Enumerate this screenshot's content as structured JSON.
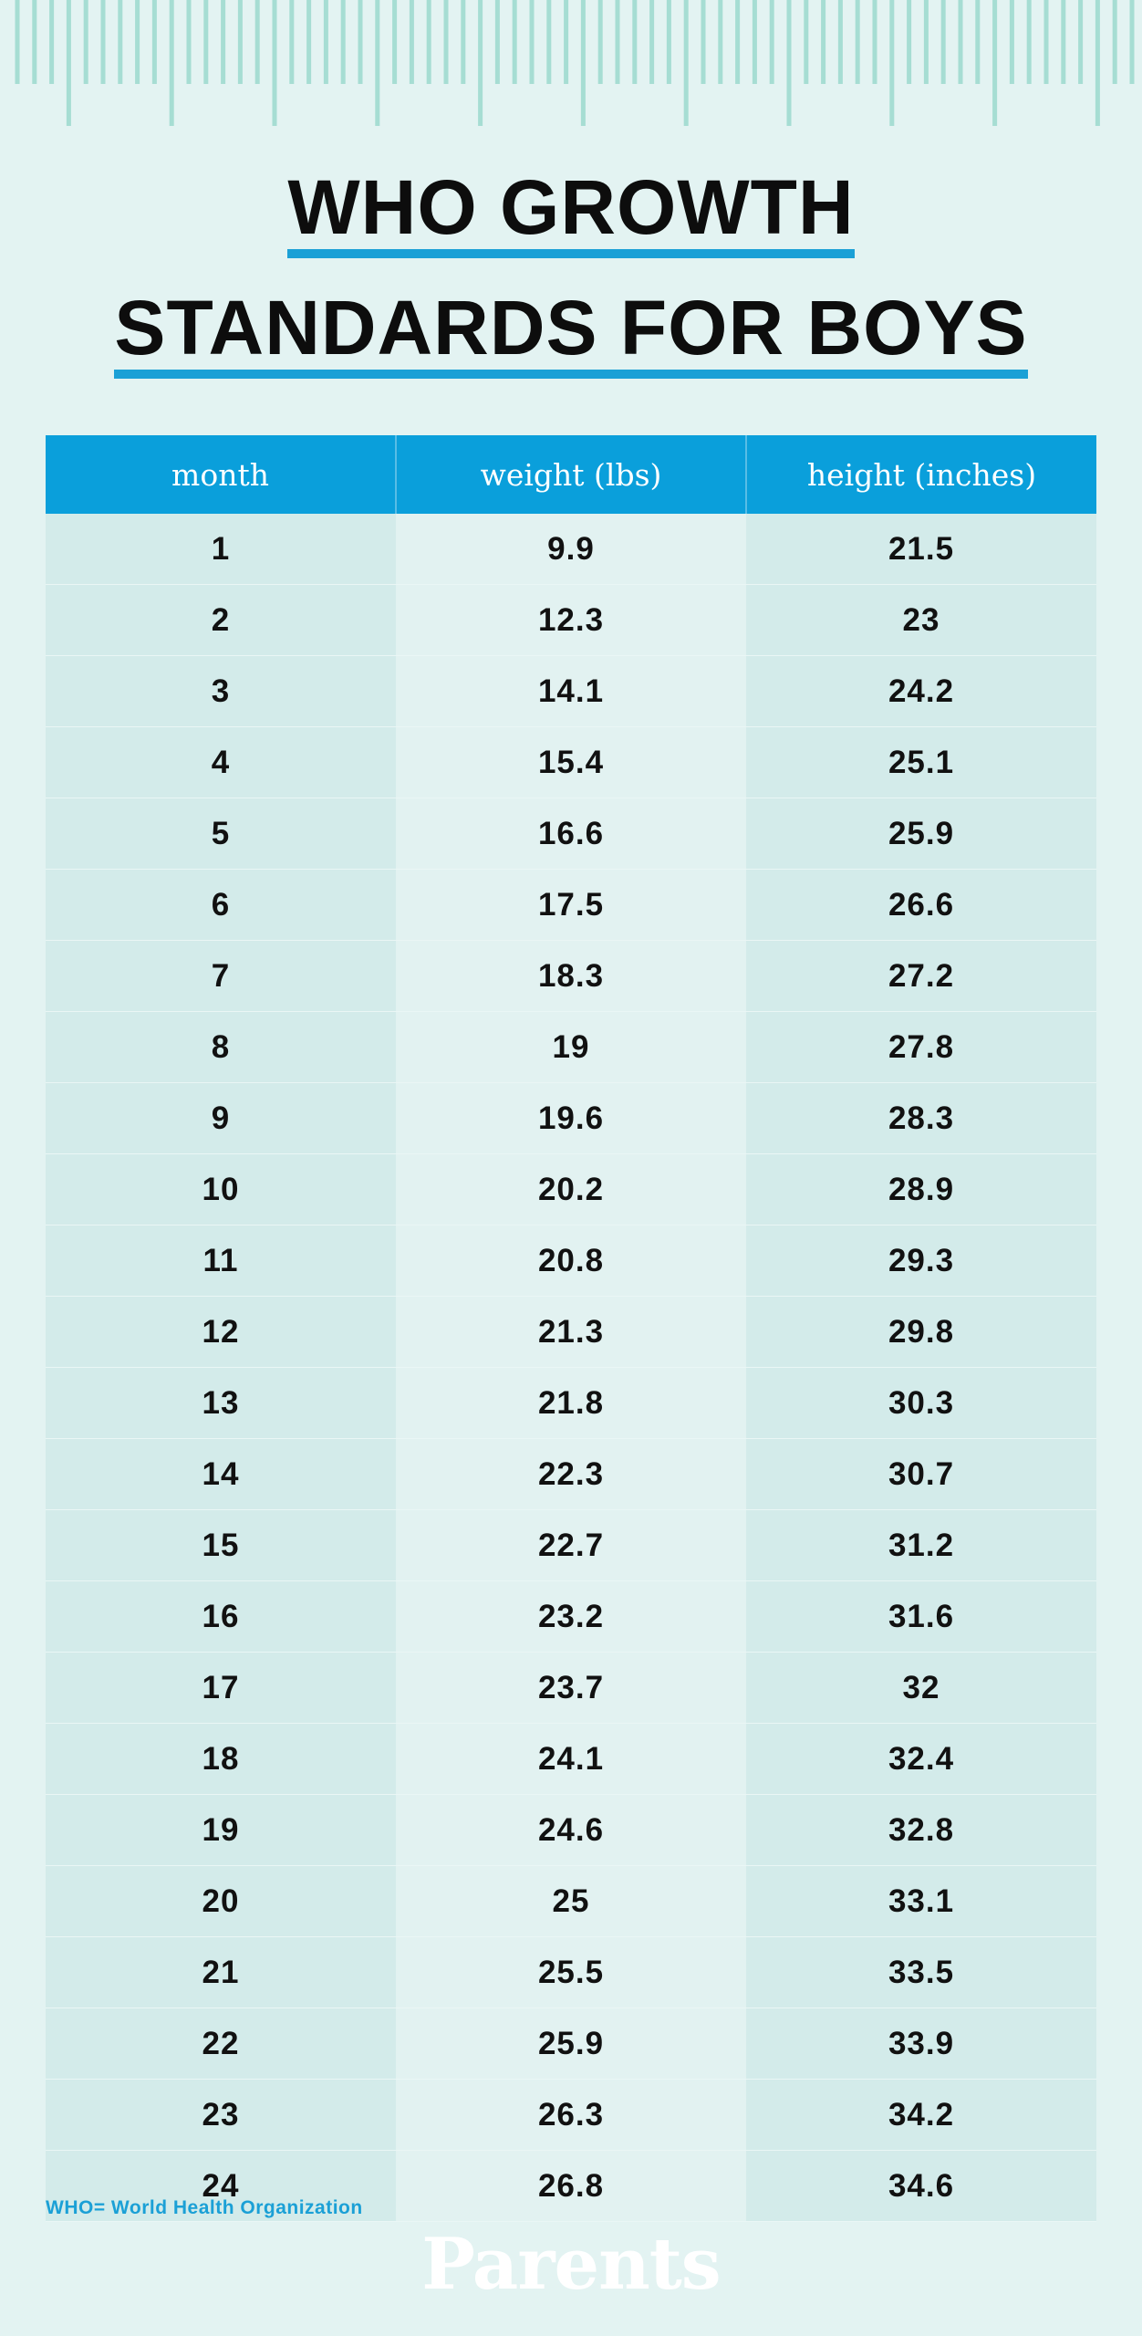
{
  "colors": {
    "background": "#e3f3f2",
    "header": "#0a9fdb",
    "accent": "#1ba0d6",
    "ruler": "#a6ddd3",
    "text": "#111111"
  },
  "title": {
    "line1": "WHO GROWTH",
    "line2": "STANDARDS FOR BOYS"
  },
  "footnote": "WHO= World Health Organization",
  "logo": "Parents",
  "chart_data": {
    "type": "table",
    "columns": [
      "month",
      "weight (lbs)",
      "height (inches)"
    ],
    "rows": [
      [
        "1",
        "9.9",
        "21.5"
      ],
      [
        "2",
        "12.3",
        "23"
      ],
      [
        "3",
        "14.1",
        "24.2"
      ],
      [
        "4",
        "15.4",
        "25.1"
      ],
      [
        "5",
        "16.6",
        "25.9"
      ],
      [
        "6",
        "17.5",
        "26.6"
      ],
      [
        "7",
        "18.3",
        "27.2"
      ],
      [
        "8",
        "19",
        "27.8"
      ],
      [
        "9",
        "19.6",
        "28.3"
      ],
      [
        "10",
        "20.2",
        "28.9"
      ],
      [
        "11",
        "20.8",
        "29.3"
      ],
      [
        "12",
        "21.3",
        "29.8"
      ],
      [
        "13",
        "21.8",
        "30.3"
      ],
      [
        "14",
        "22.3",
        "30.7"
      ],
      [
        "15",
        "22.7",
        "31.2"
      ],
      [
        "16",
        "23.2",
        "31.6"
      ],
      [
        "17",
        "23.7",
        "32"
      ],
      [
        "18",
        "24.1",
        "32.4"
      ],
      [
        "19",
        "24.6",
        "32.8"
      ],
      [
        "20",
        "25",
        "33.1"
      ],
      [
        "21",
        "25.5",
        "33.5"
      ],
      [
        "22",
        "25.9",
        "33.9"
      ],
      [
        "23",
        "26.3",
        "34.2"
      ],
      [
        "24",
        "26.8",
        "34.6"
      ]
    ]
  }
}
